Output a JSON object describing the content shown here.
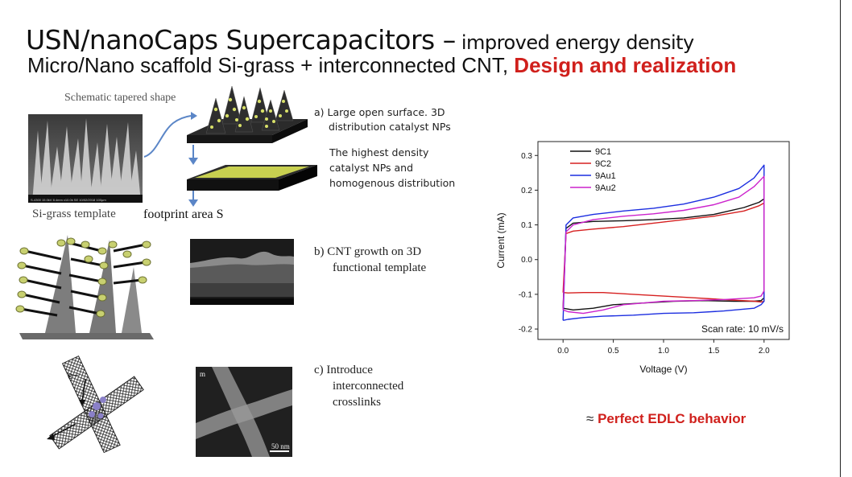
{
  "title": {
    "main": "USN/nanoCaps Supercapacitors –",
    "tail": " improved energy density"
  },
  "subtitle": {
    "main": "Micro/Nano scaffold Si-grass + interconnected CNT,",
    "highlight": "Design and realization"
  },
  "figure_labels": {
    "schematic": "Schematic tapered shape",
    "template": "Si-grass template",
    "footprint": "footprint area S",
    "electron": "e−",
    "scalebar": "50 nm",
    "panel_m": "m"
  },
  "captions": {
    "a_line1": "a)  Large open surface. 3D",
    "a_line2": "distribution catalyst NPs",
    "a_note1": "The highest density",
    "a_note2": "catalyst NPs and",
    "a_note3": "homogenous distribution",
    "b_line1": "b)  CNT growth on 3D",
    "b_line2": "functional template",
    "c_line1": "c) Introduce",
    "c_line2": "interconnected",
    "c_line3": "crosslinks"
  },
  "conclusion": {
    "approx": "≈ ",
    "text": "Perfect EDLC behavior"
  },
  "chart_data": {
    "type": "line",
    "xlabel": "Voltage (V)",
    "ylabel": "Current (mA)",
    "xlim": [
      -0.25,
      2.25
    ],
    "ylim": [
      -0.23,
      0.34
    ],
    "xticks": [
      "0.0",
      "0.5",
      "1.0",
      "1.5",
      "2.0"
    ],
    "yticks": [
      "-0.2",
      "-0.1",
      "0.0",
      "0.1",
      "0.2",
      "0.3"
    ],
    "annotation": "Scan rate: 10 mV/s",
    "legend_position": "top-left",
    "series": [
      {
        "name": "9C1",
        "color": "#111111",
        "x": [
          0.0,
          0.03,
          0.1,
          0.3,
          0.6,
          0.9,
          1.2,
          1.5,
          1.8,
          1.95,
          2.0,
          2.0,
          1.97,
          1.9,
          1.7,
          1.4,
          1.1,
          0.8,
          0.5,
          0.3,
          0.1,
          0.0
        ],
        "y": [
          -0.14,
          0.09,
          0.105,
          0.11,
          0.112,
          0.115,
          0.12,
          0.13,
          0.15,
          0.165,
          0.175,
          -0.11,
          -0.118,
          -0.12,
          -0.12,
          -0.118,
          -0.12,
          -0.125,
          -0.13,
          -0.14,
          -0.145,
          -0.14
        ]
      },
      {
        "name": "9C2",
        "color": "#d62020",
        "x": [
          0.0,
          0.03,
          0.1,
          0.3,
          0.6,
          0.9,
          1.2,
          1.5,
          1.8,
          1.95,
          2.0,
          2.0,
          1.97,
          1.9,
          1.6,
          1.3,
          1.0,
          0.7,
          0.4,
          0.2,
          0.05,
          0.0
        ],
        "y": [
          -0.095,
          0.075,
          0.082,
          0.088,
          0.095,
          0.105,
          0.115,
          0.125,
          0.14,
          0.155,
          0.163,
          -0.12,
          -0.122,
          -0.12,
          -0.115,
          -0.11,
          -0.105,
          -0.1,
          -0.095,
          -0.095,
          -0.096,
          -0.095
        ]
      },
      {
        "name": "9Au1",
        "color": "#1c2ee0",
        "x": [
          0.0,
          0.03,
          0.1,
          0.3,
          0.6,
          0.9,
          1.2,
          1.5,
          1.75,
          1.9,
          2.0,
          2.0,
          1.97,
          1.9,
          1.6,
          1.3,
          1.0,
          0.7,
          0.4,
          0.2,
          0.05,
          0.0
        ],
        "y": [
          -0.175,
          0.1,
          0.12,
          0.13,
          0.14,
          0.148,
          0.16,
          0.18,
          0.205,
          0.235,
          0.272,
          -0.12,
          -0.13,
          -0.14,
          -0.148,
          -0.153,
          -0.155,
          -0.16,
          -0.163,
          -0.167,
          -0.172,
          -0.175
        ]
      },
      {
        "name": "9Au2",
        "color": "#cc22cc",
        "x": [
          0.0,
          0.03,
          0.1,
          0.3,
          0.6,
          0.9,
          1.2,
          1.5,
          1.75,
          1.9,
          2.0,
          2.0,
          1.97,
          1.9,
          1.6,
          1.3,
          1.0,
          0.8,
          0.6,
          0.4,
          0.2,
          0.05,
          0.0
        ],
        "y": [
          -0.145,
          0.08,
          0.1,
          0.115,
          0.125,
          0.132,
          0.142,
          0.158,
          0.18,
          0.21,
          0.24,
          -0.09,
          -0.105,
          -0.11,
          -0.115,
          -0.118,
          -0.12,
          -0.125,
          -0.13,
          -0.145,
          -0.155,
          -0.15,
          -0.145
        ]
      }
    ]
  }
}
